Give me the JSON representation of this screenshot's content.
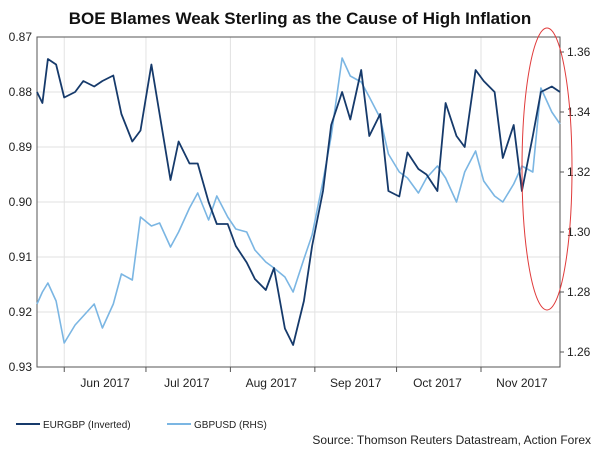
{
  "chart_data": {
    "type": "line",
    "title": "BOE Blames Weak Sterling as the Cause of High Inflation",
    "source": "Source: Thomson Reuters Datastream, Action Forex",
    "x_tick_labels": [
      "Jun 2017",
      "Jul 2017",
      "Aug 2017",
      "Sep 2017",
      "Oct 2017",
      "Nov 2017"
    ],
    "left_axis": {
      "ticks": [
        "0.87",
        "0.88",
        "0.89",
        "0.90",
        "0.91",
        "0.92",
        "0.93"
      ],
      "range": [
        0.87,
        0.93
      ],
      "inverted": true
    },
    "right_axis": {
      "ticks": [
        "1.36",
        "1.34",
        "1.32",
        "1.30",
        "1.28",
        "1.26"
      ],
      "range": [
        1.255,
        1.365
      ]
    },
    "grid": true,
    "legend_position": "bottom-left",
    "x_start": "2017-05-22",
    "x_end": "2017-11-30",
    "series": [
      {
        "name": "EURGBP (Inverted)",
        "axis": "left",
        "color": "#163a6b",
        "x": [
          "2017-05-22",
          "2017-05-24",
          "2017-05-26",
          "2017-05-29",
          "2017-06-01",
          "2017-06-05",
          "2017-06-08",
          "2017-06-12",
          "2017-06-15",
          "2017-06-19",
          "2017-06-22",
          "2017-06-26",
          "2017-06-29",
          "2017-07-03",
          "2017-07-06",
          "2017-07-10",
          "2017-07-13",
          "2017-07-17",
          "2017-07-20",
          "2017-07-24",
          "2017-07-27",
          "2017-07-31",
          "2017-08-03",
          "2017-08-07",
          "2017-08-10",
          "2017-08-14",
          "2017-08-17",
          "2017-08-21",
          "2017-08-24",
          "2017-08-28",
          "2017-08-31",
          "2017-09-04",
          "2017-09-07",
          "2017-09-11",
          "2017-09-14",
          "2017-09-18",
          "2017-09-21",
          "2017-09-25",
          "2017-09-28",
          "2017-10-02",
          "2017-10-05",
          "2017-10-09",
          "2017-10-12",
          "2017-10-16",
          "2017-10-19",
          "2017-10-23",
          "2017-10-26",
          "2017-10-30",
          "2017-11-02",
          "2017-11-06",
          "2017-11-09",
          "2017-11-13",
          "2017-11-16",
          "2017-11-20",
          "2017-11-23",
          "2017-11-27",
          "2017-11-30"
        ],
        "values": [
          0.88,
          0.882,
          0.874,
          0.875,
          0.881,
          0.88,
          0.878,
          0.879,
          0.878,
          0.877,
          0.884,
          0.889,
          0.887,
          0.875,
          0.884,
          0.896,
          0.889,
          0.893,
          0.893,
          0.9,
          0.904,
          0.904,
          0.908,
          0.911,
          0.914,
          0.916,
          0.912,
          0.923,
          0.926,
          0.918,
          0.908,
          0.898,
          0.886,
          0.88,
          0.885,
          0.876,
          0.888,
          0.884,
          0.898,
          0.899,
          0.891,
          0.894,
          0.895,
          0.898,
          0.882,
          0.888,
          0.89,
          0.876,
          0.878,
          0.88,
          0.892,
          0.886,
          0.898,
          0.888,
          0.88,
          0.879,
          0.88
        ]
      },
      {
        "name": "GBPUSD (RHS)",
        "axis": "right",
        "color": "#7bb6e3",
        "x": [
          "2017-05-22",
          "2017-05-24",
          "2017-05-26",
          "2017-05-29",
          "2017-06-01",
          "2017-06-05",
          "2017-06-08",
          "2017-06-12",
          "2017-06-15",
          "2017-06-19",
          "2017-06-22",
          "2017-06-26",
          "2017-06-29",
          "2017-07-03",
          "2017-07-06",
          "2017-07-10",
          "2017-07-13",
          "2017-07-17",
          "2017-07-20",
          "2017-07-24",
          "2017-07-27",
          "2017-07-31",
          "2017-08-03",
          "2017-08-07",
          "2017-08-10",
          "2017-08-14",
          "2017-08-17",
          "2017-08-21",
          "2017-08-24",
          "2017-08-28",
          "2017-08-31",
          "2017-09-04",
          "2017-09-07",
          "2017-09-11",
          "2017-09-14",
          "2017-09-18",
          "2017-09-21",
          "2017-09-25",
          "2017-09-28",
          "2017-10-02",
          "2017-10-05",
          "2017-10-09",
          "2017-10-12",
          "2017-10-16",
          "2017-10-19",
          "2017-10-23",
          "2017-10-26",
          "2017-10-30",
          "2017-11-02",
          "2017-11-06",
          "2017-11-09",
          "2017-11-13",
          "2017-11-16",
          "2017-11-20",
          "2017-11-23",
          "2017-11-27",
          "2017-11-30"
        ],
        "values": [
          1.276,
          1.28,
          1.283,
          1.277,
          1.263,
          1.269,
          1.272,
          1.276,
          1.268,
          1.276,
          1.286,
          1.284,
          1.305,
          1.302,
          1.303,
          1.295,
          1.3,
          1.308,
          1.313,
          1.304,
          1.312,
          1.305,
          1.301,
          1.3,
          1.294,
          1.29,
          1.288,
          1.285,
          1.28,
          1.291,
          1.299,
          1.317,
          1.332,
          1.358,
          1.352,
          1.35,
          1.345,
          1.338,
          1.326,
          1.32,
          1.318,
          1.313,
          1.318,
          1.322,
          1.318,
          1.31,
          1.32,
          1.327,
          1.317,
          1.312,
          1.31,
          1.316,
          1.322,
          1.32,
          1.348,
          1.34,
          1.336
        ]
      }
    ]
  },
  "annotation": {
    "type": "ellipse",
    "color": "#e03a3a"
  }
}
